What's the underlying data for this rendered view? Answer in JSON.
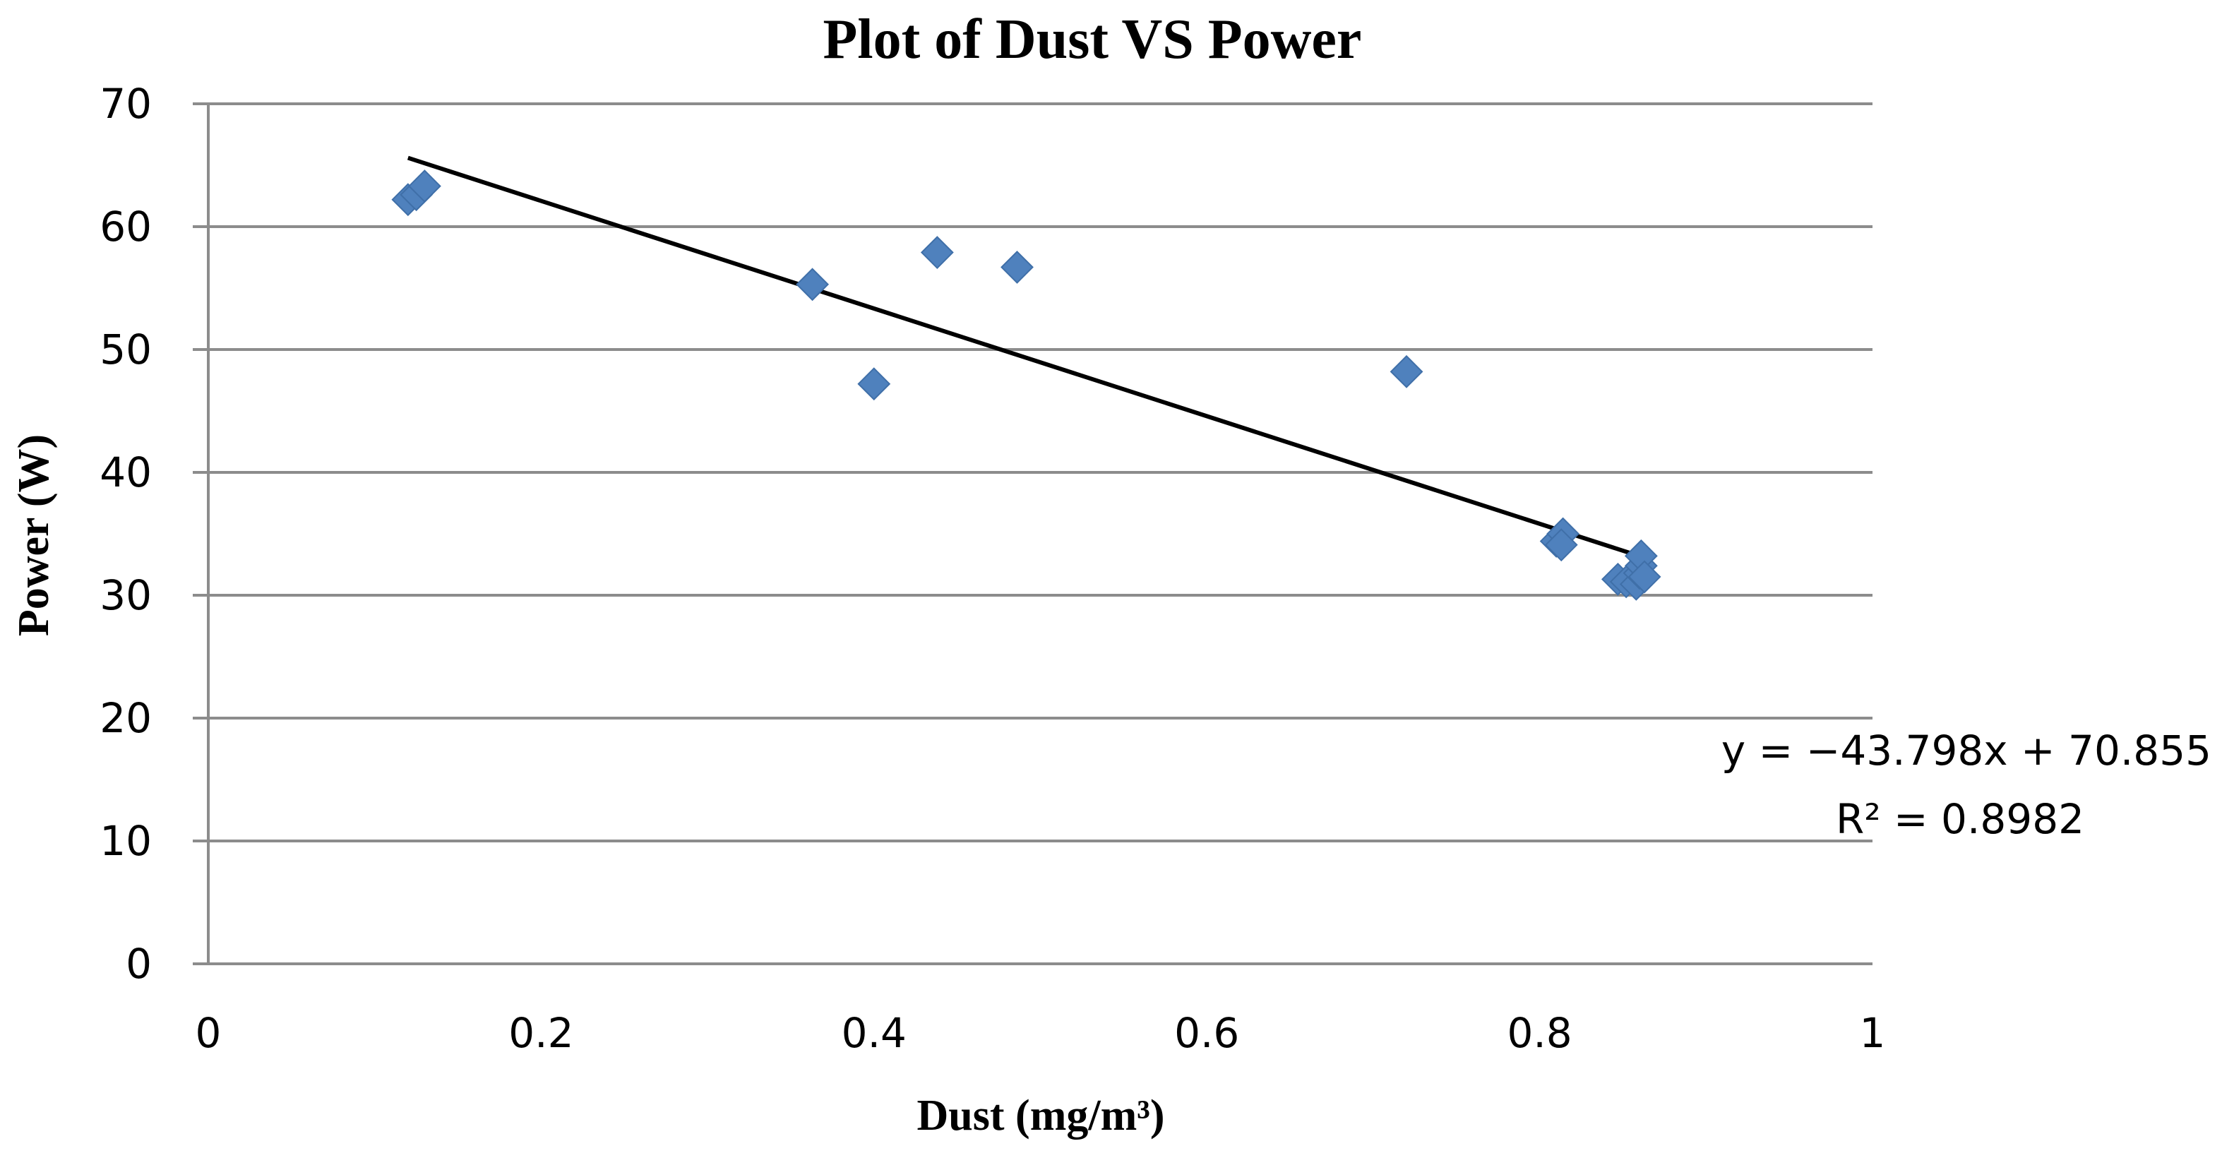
{
  "chart_data": {
    "type": "scatter",
    "title": "Plot of Dust VS Power",
    "xlabel": "Dust (mg/m³)",
    "ylabel": "Power (W)",
    "xlim": [
      0,
      1
    ],
    "ylim": [
      0,
      70
    ],
    "x_ticks": [
      0,
      0.2,
      0.4,
      0.6,
      0.8,
      1
    ],
    "x_tick_labels": [
      "0",
      "0.2",
      "0.4",
      "0.6",
      "0.8",
      "1"
    ],
    "y_ticks": [
      0,
      10,
      20,
      30,
      40,
      50,
      60,
      70
    ],
    "y_tick_labels": [
      "0",
      "10",
      "20",
      "30",
      "40",
      "50",
      "60",
      "70"
    ],
    "grid": "horizontal",
    "marker": "diamond",
    "marker_color": "#4F81BD",
    "trendline_color": "#000000",
    "gridline_color": "#8C8C8C",
    "series": [
      {
        "name": "Power",
        "points": [
          {
            "x": 0.12,
            "y": 62.2
          },
          {
            "x": 0.125,
            "y": 62.6
          },
          {
            "x": 0.13,
            "y": 63.3
          },
          {
            "x": 0.363,
            "y": 55.3
          },
          {
            "x": 0.4,
            "y": 47.2
          },
          {
            "x": 0.438,
            "y": 57.9
          },
          {
            "x": 0.486,
            "y": 56.7
          },
          {
            "x": 0.72,
            "y": 48.2
          },
          {
            "x": 0.81,
            "y": 34.4
          },
          {
            "x": 0.814,
            "y": 35.0
          },
          {
            "x": 0.813,
            "y": 34.1
          },
          {
            "x": 0.847,
            "y": 31.3
          },
          {
            "x": 0.852,
            "y": 31.1
          },
          {
            "x": 0.858,
            "y": 30.9
          },
          {
            "x": 0.86,
            "y": 31.8
          },
          {
            "x": 0.861,
            "y": 32.4
          },
          {
            "x": 0.861,
            "y": 33.2
          },
          {
            "x": 0.863,
            "y": 31.5
          }
        ]
      }
    ],
    "trendline": {
      "type": "linear",
      "slope": -43.798,
      "intercept": 70.855,
      "x_range": [
        0.12,
        0.865
      ],
      "equation": "y = −43.798x + 70.855",
      "r_squared": "R² = 0.8982"
    }
  }
}
